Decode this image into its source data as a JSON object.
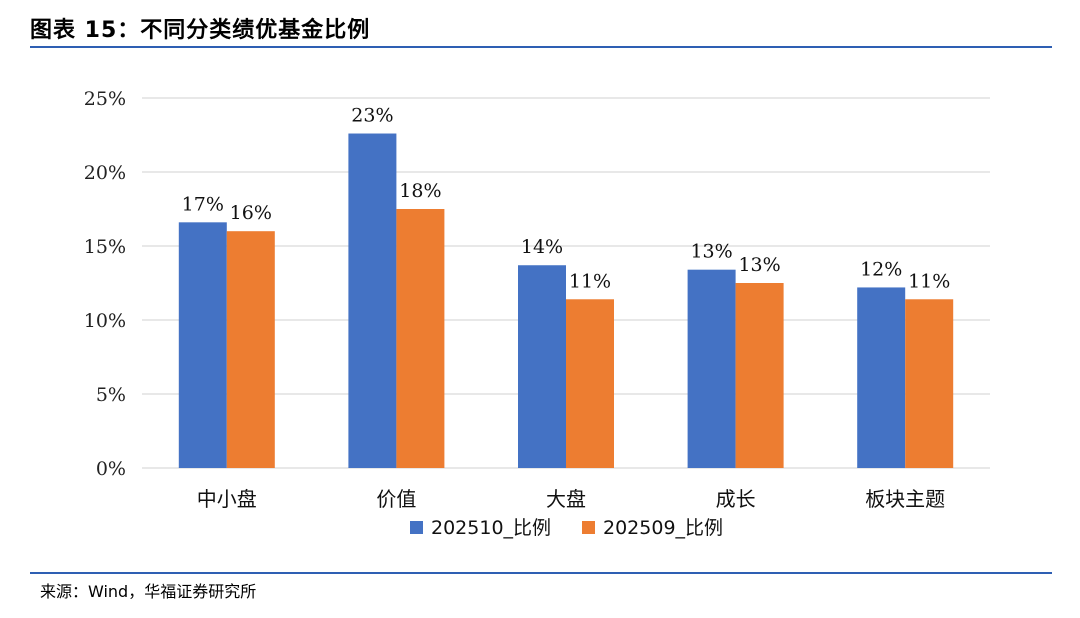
{
  "header": {
    "title": "图表 15：不同分类绩优基金比例"
  },
  "footer": {
    "source": "来源：Wind，华福证券研究所"
  },
  "colors": {
    "series_1": "#4472C4",
    "series_2": "#ED7D31",
    "rule": "#2E5FB3",
    "grid": "#D9D9D9"
  },
  "chart_data": {
    "type": "bar",
    "categories": [
      "中小盘",
      "价值",
      "大盘",
      "成长",
      "板块主题"
    ],
    "series": [
      {
        "name": "202510_比例",
        "values": [
          16.6,
          22.6,
          13.7,
          13.4,
          12.2
        ],
        "labels": [
          "17%",
          "23%",
          "14%",
          "13%",
          "12%"
        ]
      },
      {
        "name": "202509_比例",
        "values": [
          16.0,
          17.5,
          11.4,
          12.5,
          11.4
        ],
        "labels": [
          "16%",
          "18%",
          "11%",
          "13%",
          "11%"
        ]
      }
    ],
    "ylim": [
      0,
      25
    ],
    "yticks": [
      "0%",
      "5%",
      "10%",
      "15%",
      "20%",
      "25%"
    ],
    "ytick_values": [
      0,
      5,
      10,
      15,
      20,
      25
    ],
    "grid": true,
    "legend_position": "bottom"
  }
}
